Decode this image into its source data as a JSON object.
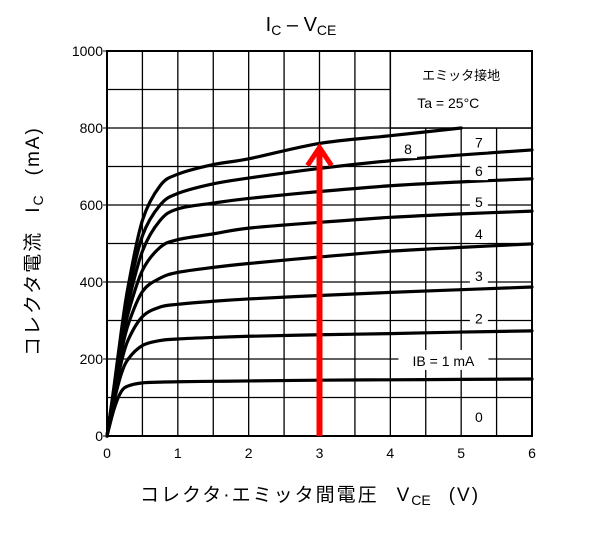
{
  "chart_data": {
    "type": "line",
    "title": {
      "main": "I",
      "main_sub": "C",
      "sep": " – V",
      "sep_sub": "CE"
    },
    "xlabel": {
      "text": "コレクタ·エミッタ間電圧",
      "symbol": "V",
      "symbol_sub": "CE",
      "unit": "(V)"
    },
    "ylabel": {
      "text": "コレクタ電流",
      "symbol": "I",
      "symbol_sub": "C",
      "unit": "(mA)"
    },
    "xlim": [
      0,
      6
    ],
    "ylim": [
      0,
      1000
    ],
    "xticks": [
      "0",
      "1",
      "2",
      "3",
      "4",
      "5",
      "6"
    ],
    "yticks": [
      "0",
      "200",
      "400",
      "600",
      "800",
      "1000"
    ],
    "grid": true,
    "legend_box": {
      "line1": "エミッタ接地",
      "line2": "Ta = 25°C",
      "placement": "top-right"
    },
    "x": [
      0,
      0.1,
      0.2,
      0.3,
      0.5,
      0.75,
      1,
      1.5,
      2,
      3,
      4,
      5,
      6
    ],
    "series": [
      {
        "name": "IB = 1 mA",
        "label": "IB = 1 mA",
        "values": [
          0,
          70,
          115,
          130,
          138,
          140,
          141,
          142,
          143,
          145,
          146,
          147,
          148
        ]
      },
      {
        "name": "IB = 2 mA",
        "label": "2",
        "values": [
          0,
          90,
          160,
          200,
          235,
          248,
          252,
          256,
          259,
          263,
          266,
          270,
          273
        ]
      },
      {
        "name": "IB = 3 mA",
        "label": "3",
        "values": [
          0,
          100,
          190,
          250,
          310,
          335,
          342,
          350,
          356,
          365,
          373,
          380,
          387
        ]
      },
      {
        "name": "IB = 4 mA",
        "label": "4",
        "values": [
          0,
          110,
          215,
          290,
          375,
          410,
          425,
          438,
          448,
          465,
          480,
          490,
          499
        ]
      },
      {
        "name": "IB = 5 mA",
        "label": "5",
        "values": [
          0,
          115,
          235,
          320,
          430,
          490,
          510,
          525,
          540,
          555,
          568,
          577,
          584
        ]
      },
      {
        "name": "IB = 6 mA",
        "label": "6",
        "values": [
          0,
          120,
          250,
          345,
          480,
          560,
          590,
          605,
          617,
          635,
          650,
          660,
          668
        ]
      },
      {
        "name": "IB = 7 mA",
        "label": "7",
        "values": [
          0,
          125,
          260,
          370,
          520,
          600,
          630,
          655,
          670,
          695,
          715,
          730,
          743
        ]
      },
      {
        "name": "IB = 8 mA",
        "label": "8",
        "values": [
          0,
          130,
          270,
          390,
          560,
          650,
          680,
          705,
          720,
          760,
          780,
          800,
          null
        ]
      }
    ],
    "zero_label": "0",
    "annotation_arrow": {
      "x": 3,
      "from": 0,
      "to": 770,
      "color": "#ff0000"
    }
  }
}
